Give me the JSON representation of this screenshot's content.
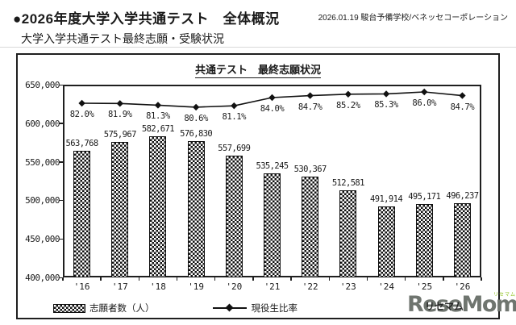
{
  "page": {
    "title": "●2026年度大学入学共通テスト　全体概況",
    "source": "2026.01.19 駿台予備学校/ベネッセコーポレーション",
    "subtitle": "大学入学共通テスト最終志願・受験状況"
  },
  "chart_data": {
    "type": "bar",
    "title": "共通テスト　最終志願状況",
    "categories": [
      "'16",
      "'17",
      "'18",
      "'19",
      "'20",
      "'21",
      "'22",
      "'23",
      "'24",
      "'25",
      "'26"
    ],
    "series": [
      {
        "name": "志願者数（人）",
        "type": "bar",
        "values": [
          563768,
          575967,
          582671,
          576830,
          557699,
          535245,
          530367,
          512581,
          491914,
          495171,
          496237
        ],
        "labels": [
          "563,768",
          "575,967",
          "582,671",
          "576,830",
          "557,699",
          "535,245",
          "530,367",
          "512,581",
          "491,914",
          "495,171",
          "496,237"
        ]
      },
      {
        "name": "現役生比率",
        "type": "line",
        "unit": "%",
        "values": [
          82.0,
          81.9,
          81.3,
          80.6,
          81.1,
          84.0,
          84.7,
          85.2,
          85.3,
          86.0,
          84.7
        ],
        "labels": [
          "82.0%",
          "81.9%",
          "81.3%",
          "80.6%",
          "81.1%",
          "84.0%",
          "84.7%",
          "85.2%",
          "85.3%",
          "86.0%",
          "84.7%"
        ]
      }
    ],
    "y_axis": {
      "min": 400000,
      "max": 650000,
      "step": 50000,
      "tick_labels": [
        "650,000",
        "600,000",
        "550,000",
        "500,000",
        "450,000",
        "400,000"
      ]
    },
    "grid": false,
    "legend_position": "bottom-left",
    "legend": [
      {
        "label": "志願者数（人）",
        "swatch": "checker-pattern"
      },
      {
        "label": "現役生比率",
        "swatch": "line-diamond"
      }
    ]
  },
  "watermark": {
    "logo": "ReseMom.",
    "kana_small": "リセマム",
    "kana_overlay": "リセマム",
    "logo_color": "#6f756f",
    "kana_color": "#8fc31f"
  },
  "colors": {
    "ink": "#1a1a1a",
    "background": "#ffffff"
  }
}
